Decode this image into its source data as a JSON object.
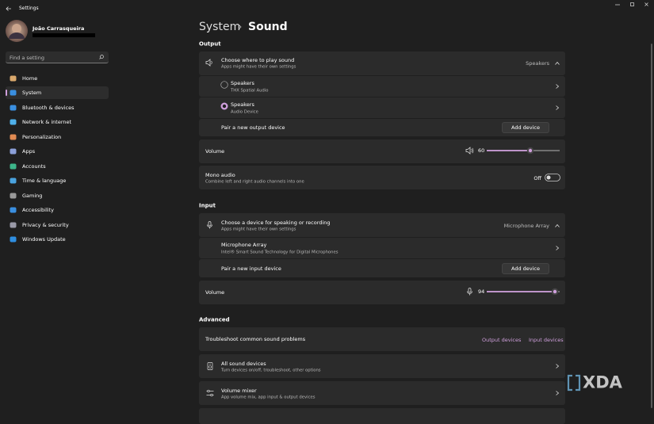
{
  "window": {
    "title": "Settings"
  },
  "user": {
    "name": "João Carrasqueira"
  },
  "search": {
    "placeholder": "Find a setting"
  },
  "nav": {
    "items": [
      "Home",
      "System",
      "Bluetooth & devices",
      "Network & internet",
      "Personalization",
      "Apps",
      "Accounts",
      "Time & language",
      "Gaming",
      "Accessibility",
      "Privacy & security",
      "Windows Update"
    ]
  },
  "breadcrumb": {
    "parent": "System",
    "current": "Sound"
  },
  "output": {
    "heading": "Output",
    "chooser": {
      "title": "Choose where to play sound",
      "subtitle": "Apps might have their own settings",
      "selected": "Speakers"
    },
    "devices": [
      {
        "name": "Speakers",
        "detail": "THX Spatial Audio"
      },
      {
        "name": "Speakers",
        "detail": "Audio Device"
      }
    ],
    "pair": {
      "label": "Pair a new output device",
      "button": "Add device"
    },
    "volume": {
      "label": "Volume",
      "value": 60
    },
    "mono": {
      "title": "Mono audio",
      "subtitle": "Combine left and right audio channels into one",
      "state": "Off"
    }
  },
  "input": {
    "heading": "Input",
    "chooser": {
      "title": "Choose a device for speaking or recording",
      "subtitle": "Apps might have their own settings",
      "selected": "Microphone Array"
    },
    "devices": [
      {
        "name": "Microphone Array",
        "detail": "Intel® Smart Sound Technology for Digital Microphones"
      }
    ],
    "pair": {
      "label": "Pair a new input device",
      "button": "Add device"
    },
    "volume": {
      "label": "Volume",
      "value": 94
    }
  },
  "advanced": {
    "heading": "Advanced",
    "troubleshoot": {
      "label": "Troubleshoot common sound problems",
      "links": [
        "Output devices",
        "Input devices"
      ]
    },
    "items": [
      {
        "title": "All sound devices",
        "subtitle": "Turn devices on/off, troubleshoot, other options"
      },
      {
        "title": "Volume mixer",
        "subtitle": "App volume mix, app input & output devices"
      }
    ]
  },
  "watermark": "XDA"
}
